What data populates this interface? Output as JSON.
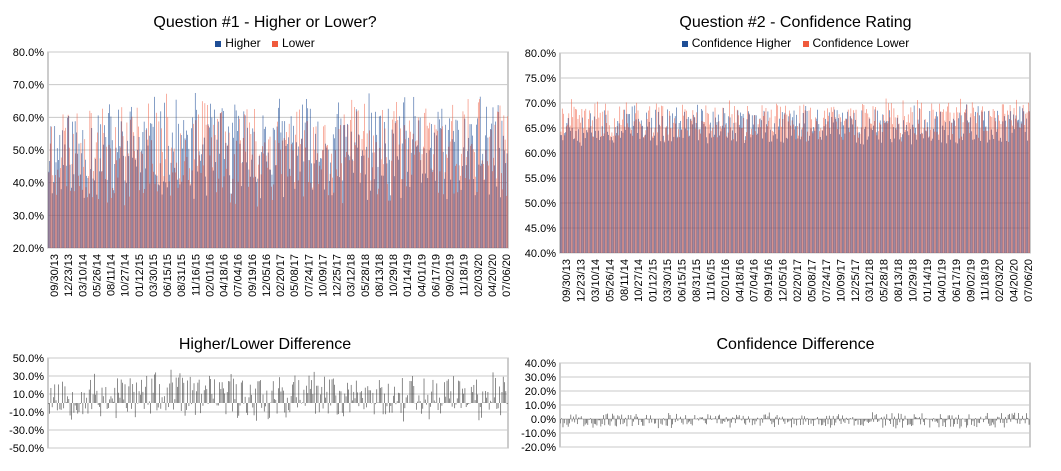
{
  "colors": {
    "higher": "#1f4e96",
    "lower": "#f05a3c",
    "diff": "#404040",
    "grid": "#c8c8c8",
    "axis": "#9a9a9a"
  },
  "chart_data": [
    {
      "id": "q1",
      "type": "bar",
      "title": "Question #1 - Higher or Lower?",
      "ylim": [
        0.2,
        0.8
      ],
      "yticks": [
        "20.0%",
        "30.0%",
        "40.0%",
        "50.0%",
        "60.0%",
        "70.0%",
        "80.0%"
      ],
      "xticks": [
        "09/30/13",
        "12/23/13",
        "03/10/14",
        "05/26/14",
        "08/11/14",
        "10/27/14",
        "01/12/15",
        "03/30/15",
        "06/15/15",
        "08/31/15",
        "11/16/15",
        "02/01/16",
        "04/18/16",
        "07/04/16",
        "09/19/16",
        "12/05/16",
        "02/20/17",
        "05/08/17",
        "07/24/17",
        "10/09/17",
        "12/25/17",
        "03/12/18",
        "05/28/18",
        "08/13/18",
        "10/29/18",
        "01/14/19",
        "04/01/19",
        "06/17/19",
        "09/02/19",
        "11/18/19",
        "02/03/20",
        "04/20/20",
        "07/06/20"
      ],
      "grid": true,
      "legend_position": "top",
      "series": [
        {
          "name": "Higher",
          "color": "#1f4e96",
          "n": 360,
          "base": 0.5,
          "amp": 0.18,
          "seed": 11
        },
        {
          "name": "Lower",
          "color": "#f05a3c",
          "n": 360,
          "base": 0.5,
          "amp": 0.18,
          "seed": 23
        }
      ]
    },
    {
      "id": "q2",
      "type": "bar",
      "title": "Question #2 - Confidence Rating",
      "ylim": [
        0.4,
        0.8
      ],
      "yticks": [
        "40.0%",
        "45.0%",
        "50.0%",
        "55.0%",
        "60.0%",
        "65.0%",
        "70.0%",
        "75.0%",
        "80.0%"
      ],
      "xticks": [
        "09/30/13",
        "12/23/13",
        "03/10/14",
        "05/26/14",
        "08/11/14",
        "10/27/14",
        "01/12/15",
        "03/30/15",
        "06/15/15",
        "08/31/15",
        "11/16/15",
        "02/01/16",
        "04/18/16",
        "07/04/16",
        "09/19/16",
        "12/05/16",
        "02/20/17",
        "05/08/17",
        "07/24/17",
        "10/09/17",
        "12/25/17",
        "03/12/18",
        "05/28/18",
        "08/13/18",
        "10/29/18",
        "01/14/19",
        "04/01/19",
        "06/17/19",
        "09/02/19",
        "11/18/19",
        "02/03/20",
        "04/20/20",
        "07/06/20"
      ],
      "grid": true,
      "legend_position": "top",
      "series": [
        {
          "name": "Confidence Higher",
          "color": "#1f4e96",
          "n": 360,
          "base": 0.655,
          "amp": 0.045,
          "seed": 37
        },
        {
          "name": "Confidence Lower",
          "color": "#f05a3c",
          "n": 360,
          "base": 0.665,
          "amp": 0.045,
          "seed": 41
        }
      ]
    },
    {
      "id": "diff1",
      "type": "bar",
      "title": "Higher/Lower Difference",
      "ylim": [
        -0.5,
        0.5
      ],
      "yticks": [
        "-50.0%",
        "-30.0%",
        "-10.0%",
        "10.0%",
        "30.0%",
        "50.0%"
      ],
      "grid": true,
      "series": [
        {
          "name": "",
          "color": "#404040",
          "n": 360,
          "base": 0.08,
          "amp": 0.3,
          "seed": 53
        }
      ]
    },
    {
      "id": "diff2",
      "type": "bar",
      "title": "Confidence Difference",
      "ylim": [
        -0.2,
        0.4
      ],
      "yticks": [
        "-20.0%",
        "-10.0%",
        "0.0%",
        "10.0%",
        "20.0%",
        "30.0%",
        "40.0%"
      ],
      "grid": true,
      "series": [
        {
          "name": "",
          "color": "#404040",
          "n": 360,
          "base": -0.01,
          "amp": 0.06,
          "seed": 67
        }
      ]
    }
  ]
}
